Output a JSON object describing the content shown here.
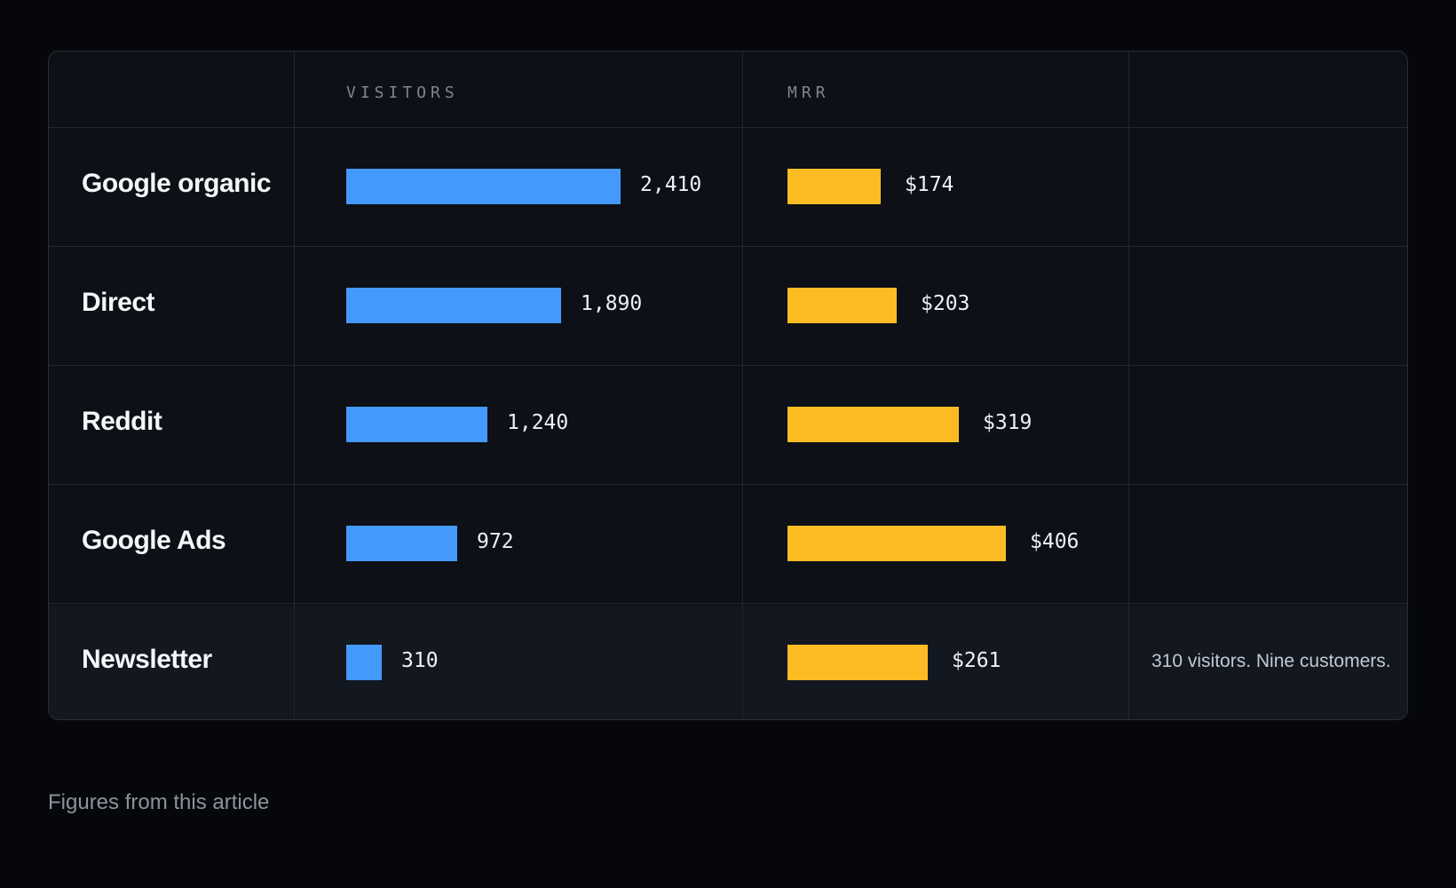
{
  "chart_data": {
    "type": "bar",
    "columns": [
      "VISITORS",
      "MRR"
    ],
    "categories": [
      "Google organic",
      "Direct",
      "Reddit",
      "Google Ads",
      "Newsletter"
    ],
    "series": [
      {
        "name": "VISITORS",
        "values": [
          2410,
          1890,
          1240,
          972,
          310
        ],
        "labels": [
          "2,410",
          "1,890",
          "1,240",
          "972",
          "310"
        ],
        "color": "#4499fb"
      },
      {
        "name": "MRR",
        "values": [
          174,
          203,
          319,
          406,
          261
        ],
        "labels": [
          "$174",
          "$203",
          "$319",
          "$406",
          "$261"
        ],
        "color": "#fdbc24"
      }
    ],
    "notes": [
      "",
      "",
      "",
      "",
      "310 visitors. Nine customers."
    ],
    "highlighted_row": "Newsletter"
  },
  "caption": "Figures from this article"
}
